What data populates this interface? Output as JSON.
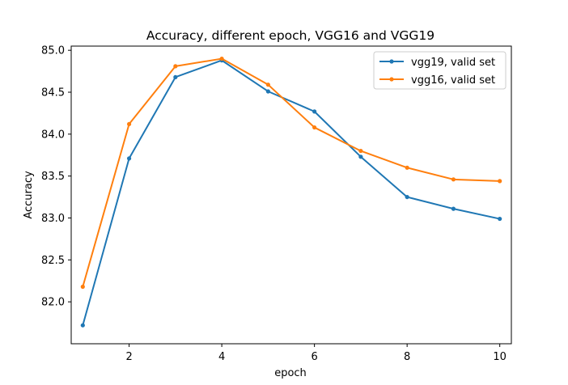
{
  "chart_data": {
    "type": "line",
    "title": "Accuracy, different epoch, VGG16 and VGG19",
    "xlabel": "epoch",
    "ylabel": "Accuracy",
    "x": [
      1,
      2,
      3,
      4,
      5,
      6,
      7,
      8,
      9,
      10
    ],
    "xlim": [
      0.75,
      10.25
    ],
    "ylim": [
      81.5,
      85.05
    ],
    "xticks": [
      2,
      4,
      6,
      8,
      10
    ],
    "xtick_labels": [
      "2",
      "4",
      "6",
      "8",
      "10"
    ],
    "yticks": [
      82.0,
      82.5,
      83.0,
      83.5,
      84.0,
      84.5,
      85.0
    ],
    "ytick_labels": [
      "82.0",
      "82.5",
      "83.0",
      "83.5",
      "84.0",
      "84.5",
      "85.0"
    ],
    "grid": false,
    "legend_position": "top-right",
    "series": [
      {
        "name": "vgg19, valid set",
        "color": "#1f77b4",
        "marker": "dot",
        "values": [
          81.72,
          83.71,
          84.68,
          84.88,
          84.51,
          84.27,
          83.73,
          83.25,
          83.11,
          82.99
        ]
      },
      {
        "name": "vgg16, valid set",
        "color": "#ff7f0e",
        "marker": "dot",
        "values": [
          82.18,
          84.12,
          84.81,
          84.9,
          84.59,
          84.08,
          83.8,
          83.6,
          83.46,
          83.44
        ]
      }
    ]
  }
}
